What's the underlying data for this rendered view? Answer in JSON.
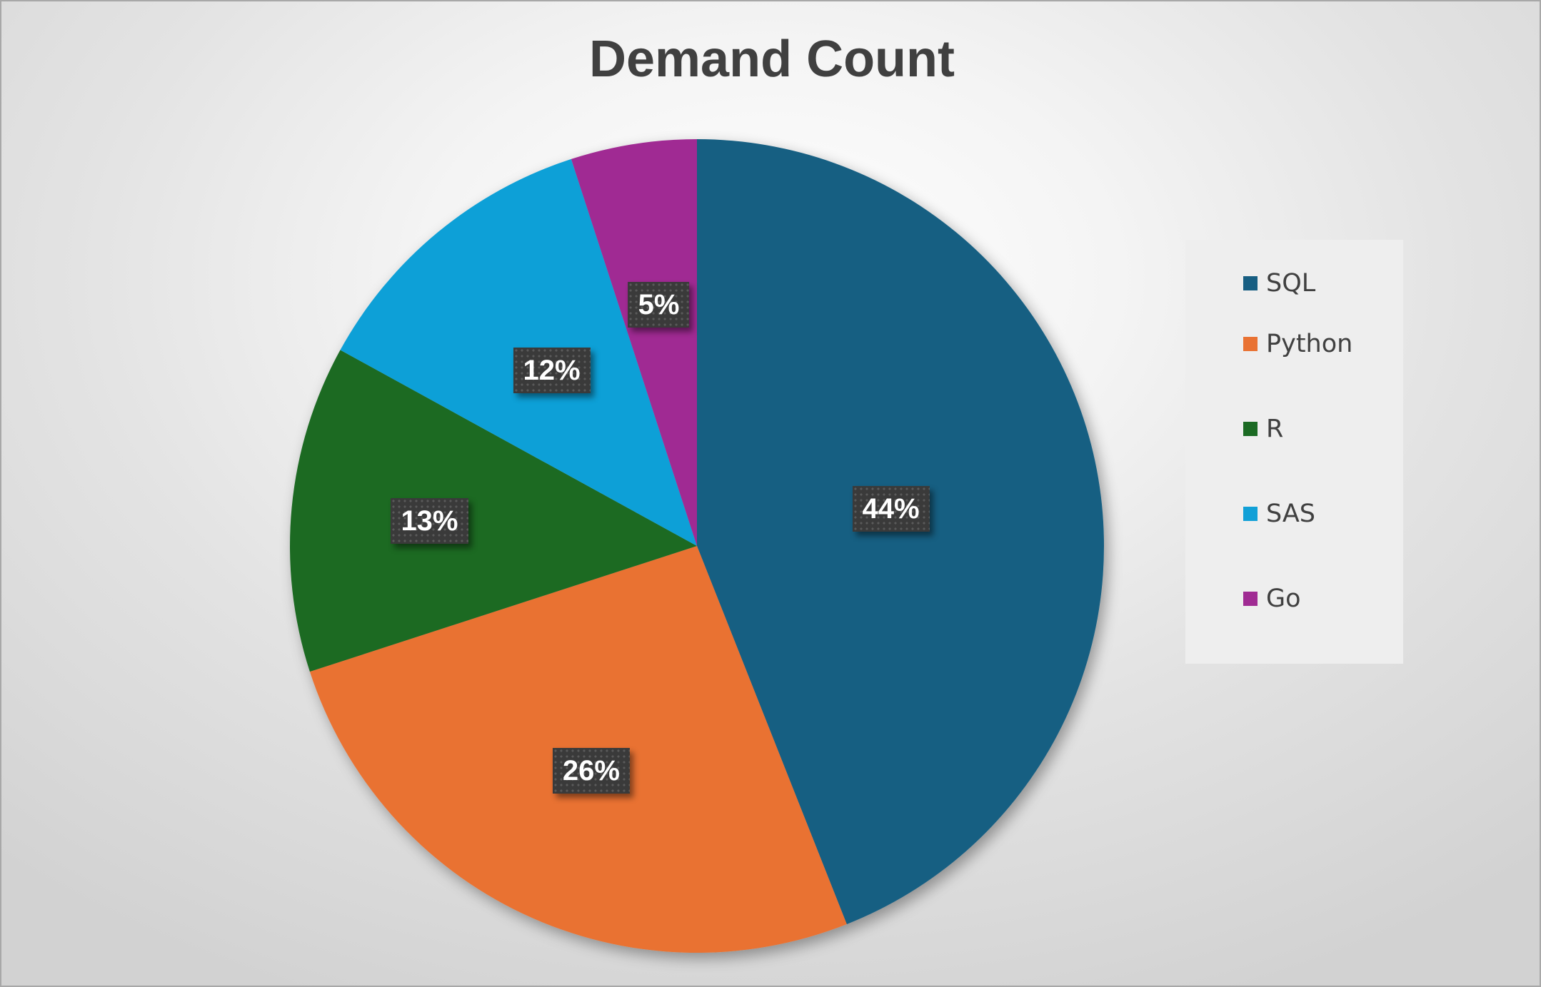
{
  "chart_data": {
    "type": "pie",
    "title": "Demand Count",
    "legend_position": "right",
    "slices": [
      {
        "label": "SQL",
        "percent": 44,
        "value_label": "44%",
        "color": "#175e82"
      },
      {
        "label": "Python",
        "percent": 26,
        "value_label": "26%",
        "color": "#e97233"
      },
      {
        "label": "R",
        "percent": 13,
        "value_label": "13%",
        "color": "#1b6a23"
      },
      {
        "label": "SAS",
        "percent": 12,
        "value_label": "12%",
        "color": "#11a0d7"
      },
      {
        "label": "Go",
        "percent": 5,
        "value_label": "5%",
        "color": "#a02b93"
      }
    ],
    "legend": [
      {
        "label": "SQL",
        "color": "#175e82"
      },
      {
        "label": "Python",
        "color": "#e97233"
      },
      {
        "label": "R",
        "color": "#1b6a23"
      },
      {
        "label": "SAS",
        "color": "#11a0d7"
      },
      {
        "label": "Go",
        "color": "#a02b93"
      }
    ]
  }
}
